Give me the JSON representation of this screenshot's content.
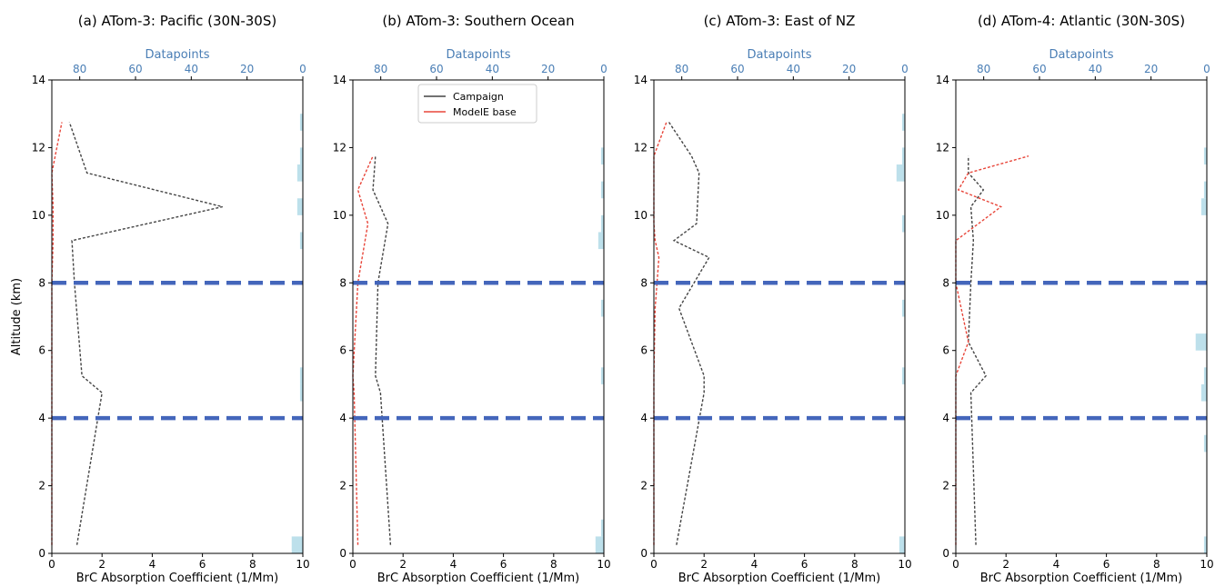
{
  "figure": {
    "ylabel": "Altitude (km)",
    "xlabel": "BrC Absorption Coefficient (1/Mm)",
    "top_xlabel": "Datapoints"
  },
  "legend": {
    "entries": [
      {
        "label": "Campaign",
        "color": "#444444"
      },
      {
        "label": "ModelE base",
        "color": "#e8463a"
      }
    ]
  },
  "colors": {
    "campaign": "#444444",
    "model": "#e8463a",
    "boundary": "#4466bb",
    "datapoints_bar": "#add8e6",
    "top_axis_text": "#4a7eb5"
  },
  "chart_data": [
    {
      "type": "line",
      "title": "(a) ATom-3: Pacific (30N-30S)",
      "xlabel": "BrC Absorption Coefficient (1/Mm)",
      "ylabel": "Altitude (km)",
      "xlim": [
        0,
        10
      ],
      "ylim": [
        0,
        14
      ],
      "xticks": [
        0,
        2,
        4,
        6,
        8,
        10
      ],
      "yticks": [
        0,
        2,
        4,
        6,
        8,
        10,
        12,
        14
      ],
      "top_axis": {
        "label": "Datapoints",
        "lim": [
          90,
          0
        ],
        "ticks": [
          80,
          60,
          40,
          20,
          0
        ]
      },
      "boundary_lines_km": [
        4,
        8
      ],
      "series": [
        {
          "name": "Campaign",
          "x": [
            1.0,
            2.0,
            1.2,
            0.9,
            0.8,
            6.8,
            1.4,
            0.7
          ],
          "y": [
            0.25,
            4.75,
            5.25,
            8.0,
            9.25,
            10.25,
            11.25,
            12.75
          ]
        },
        {
          "name": "ModelE base",
          "x": [
            0.0,
            0.0,
            0.0,
            0.0,
            0.05,
            0.05,
            0.0,
            0.4
          ],
          "y": [
            0.25,
            4.75,
            5.25,
            8.0,
            9.25,
            10.25,
            11.25,
            12.75
          ]
        }
      ],
      "datapoints": [
        {
          "y": 0.25,
          "count": 4
        },
        {
          "y": 4.75,
          "count": 1
        },
        {
          "y": 5.25,
          "count": 1
        },
        {
          "y": 9.25,
          "count": 1
        },
        {
          "y": 10.25,
          "count": 2
        },
        {
          "y": 11.25,
          "count": 2
        },
        {
          "y": 11.75,
          "count": 1
        },
        {
          "y": 12.75,
          "count": 1
        }
      ]
    },
    {
      "type": "line",
      "title": "(b) ATom-3: Southern Ocean",
      "xlabel": "BrC Absorption Coefficient (1/Mm)",
      "ylabel": "",
      "xlim": [
        0,
        10
      ],
      "ylim": [
        0,
        14
      ],
      "xticks": [
        0,
        2,
        4,
        6,
        8,
        10
      ],
      "yticks": [
        0,
        2,
        4,
        6,
        8,
        10,
        12,
        14
      ],
      "top_axis": {
        "label": "Datapoints",
        "lim": [
          90,
          0
        ],
        "ticks": [
          80,
          60,
          40,
          20,
          0
        ]
      },
      "boundary_lines_km": [
        4,
        8
      ],
      "legend": true,
      "series": [
        {
          "name": "Campaign",
          "x": [
            1.5,
            1.1,
            0.9,
            1.0,
            1.4,
            0.8,
            0.9
          ],
          "y": [
            0.25,
            4.75,
            5.25,
            8.0,
            9.75,
            10.75,
            11.75
          ]
        },
        {
          "name": "ModelE base",
          "x": [
            0.2,
            0.05,
            0.0,
            0.2,
            0.6,
            0.2,
            0.8
          ],
          "y": [
            0.25,
            4.75,
            5.25,
            8.0,
            9.75,
            10.75,
            11.75
          ]
        }
      ],
      "datapoints": [
        {
          "y": 0.25,
          "count": 3
        },
        {
          "y": 0.75,
          "count": 1
        },
        {
          "y": 5.25,
          "count": 1
        },
        {
          "y": 7.25,
          "count": 1
        },
        {
          "y": 9.25,
          "count": 2
        },
        {
          "y": 9.75,
          "count": 1
        },
        {
          "y": 10.75,
          "count": 1
        },
        {
          "y": 11.75,
          "count": 1
        }
      ]
    },
    {
      "type": "line",
      "title": "(c) ATom-3: East of NZ",
      "xlabel": "BrC Absorption Coefficient (1/Mm)",
      "ylabel": "",
      "xlim": [
        0,
        10
      ],
      "ylim": [
        0,
        14
      ],
      "xticks": [
        0,
        2,
        4,
        6,
        8,
        10
      ],
      "yticks": [
        0,
        2,
        4,
        6,
        8,
        10,
        12,
        14
      ],
      "top_axis": {
        "label": "Datapoints",
        "lim": [
          90,
          0
        ],
        "ticks": [
          80,
          60,
          40,
          20,
          0
        ]
      },
      "boundary_lines_km": [
        4,
        8
      ],
      "series": [
        {
          "name": "Campaign",
          "x": [
            0.9,
            2.0,
            2.0,
            1.0,
            2.2,
            0.8,
            1.7,
            1.8,
            1.5,
            0.6
          ],
          "y": [
            0.25,
            4.75,
            5.25,
            7.25,
            8.75,
            9.25,
            9.75,
            11.25,
            11.75,
            12.75
          ]
        },
        {
          "name": "ModelE base",
          "x": [
            0.0,
            0.0,
            0.0,
            0.05,
            0.2,
            0.05,
            0.0,
            0.0,
            0.0,
            0.5
          ],
          "y": [
            0.25,
            4.75,
            5.25,
            7.25,
            8.75,
            9.25,
            9.75,
            11.25,
            11.75,
            12.75
          ]
        }
      ],
      "datapoints": [
        {
          "y": 0.25,
          "count": 2
        },
        {
          "y": 5.25,
          "count": 1
        },
        {
          "y": 7.25,
          "count": 1
        },
        {
          "y": 9.75,
          "count": 1
        },
        {
          "y": 11.25,
          "count": 3
        },
        {
          "y": 11.75,
          "count": 1
        },
        {
          "y": 12.75,
          "count": 1
        }
      ]
    },
    {
      "type": "line",
      "title": "(d) ATom-4: Atlantic (30N-30S)",
      "xlabel": "BrC Absorption Coefficient (1/Mm)",
      "ylabel": "",
      "xlim": [
        0,
        10
      ],
      "ylim": [
        0,
        14
      ],
      "xticks": [
        0,
        2,
        4,
        6,
        8,
        10
      ],
      "yticks": [
        0,
        2,
        4,
        6,
        8,
        10,
        12,
        14
      ],
      "top_axis": {
        "label": "Datapoints",
        "lim": [
          90,
          0
        ],
        "ticks": [
          80,
          60,
          40,
          20,
          0
        ]
      },
      "boundary_lines_km": [
        4,
        8
      ],
      "series": [
        {
          "name": "Campaign",
          "x": [
            0.8,
            0.6,
            0.6,
            1.2,
            0.5,
            0.6,
            0.7,
            0.6,
            1.1,
            0.5,
            0.5
          ],
          "y": [
            0.25,
            4.75,
            4.75,
            5.25,
            6.25,
            8.0,
            9.25,
            10.25,
            10.75,
            11.25,
            11.75
          ]
        },
        {
          "name": "ModelE base",
          "x": [
            0.0,
            0.0,
            0.0,
            0.0,
            0.5,
            0.0,
            0.0,
            1.8,
            0.1,
            0.5,
            2.9
          ],
          "y": [
            0.25,
            4.75,
            4.75,
            5.25,
            6.25,
            8.0,
            9.25,
            10.25,
            10.75,
            11.25,
            11.75
          ]
        }
      ],
      "datapoints": [
        {
          "y": 0.25,
          "count": 1
        },
        {
          "y": 3.25,
          "count": 1
        },
        {
          "y": 4.75,
          "count": 2
        },
        {
          "y": 5.25,
          "count": 1
        },
        {
          "y": 6.25,
          "count": 4
        },
        {
          "y": 10.25,
          "count": 2
        },
        {
          "y": 10.75,
          "count": 1
        },
        {
          "y": 11.75,
          "count": 1
        }
      ]
    }
  ]
}
